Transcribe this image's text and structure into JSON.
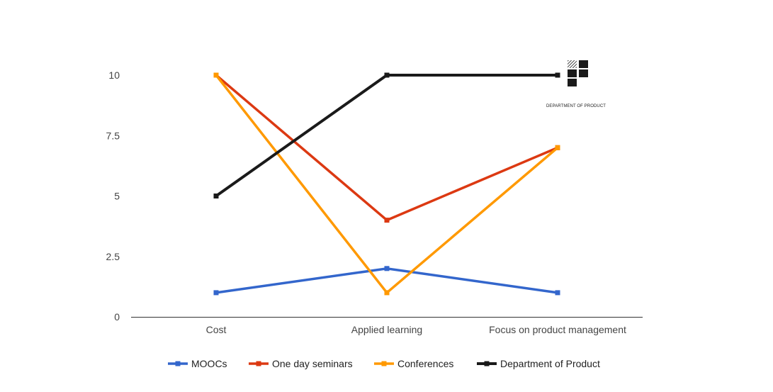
{
  "logo": {
    "caption": "DEPARTMENT OF PRODUCT",
    "icon": "department-of-product-logo"
  },
  "chart_data": {
    "type": "line",
    "title": "",
    "xlabel": "",
    "ylabel": "",
    "categories": [
      "Cost",
      "Applied learning",
      "Focus on product management"
    ],
    "ylim": [
      0,
      10
    ],
    "yticks": [
      "0",
      "2.5",
      "5",
      "7.5",
      "10"
    ],
    "ytick_values": [
      0,
      2.5,
      5,
      7.5,
      10
    ],
    "grid": false,
    "legend_position": "bottom",
    "series": [
      {
        "name": "MOOCs",
        "values": [
          1,
          2,
          1
        ],
        "color": "#3366cc"
      },
      {
        "name": "One day seminars",
        "values": [
          10,
          4,
          7
        ],
        "color": "#dc3912"
      },
      {
        "name": "Conferences",
        "values": [
          10,
          1,
          7
        ],
        "color": "#ff9900"
      },
      {
        "name": "Department of Product",
        "values": [
          5,
          10,
          10
        ],
        "color": "#1a1a1a"
      }
    ]
  }
}
